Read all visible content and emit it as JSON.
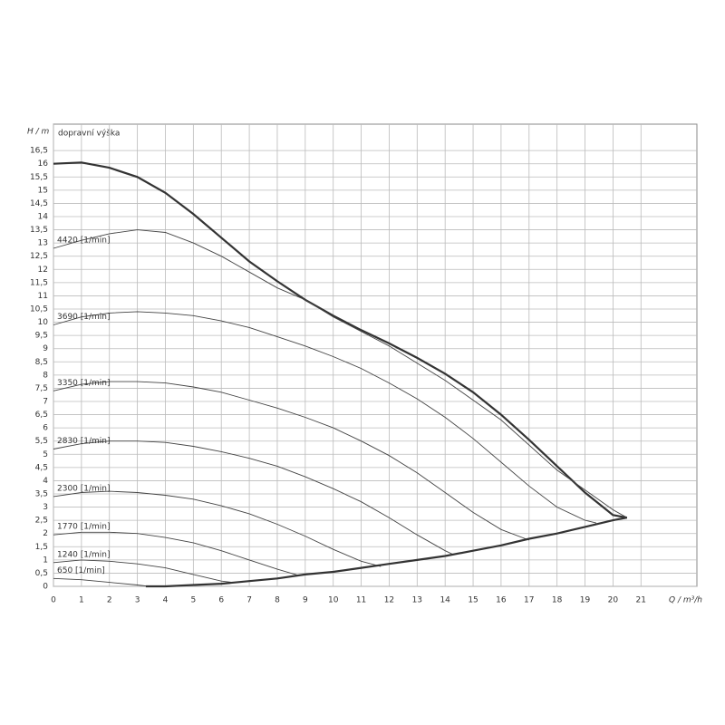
{
  "chart_data": {
    "type": "line",
    "y_label": "H / m",
    "y_title": "dopravní výška",
    "x_label": "Q / m³/h",
    "xlim": [
      0,
      23
    ],
    "ylim": [
      0,
      17.5
    ],
    "xticks": [
      0,
      1,
      2,
      3,
      4,
      5,
      6,
      7,
      8,
      9,
      10,
      11,
      12,
      13,
      14,
      15,
      16,
      17,
      18,
      19,
      20,
      21
    ],
    "yticks": [
      0,
      {
        "value": 0.5,
        "label": "0,5"
      },
      1,
      {
        "value": 1.5,
        "label": "1,5"
      },
      2,
      {
        "value": 2.5,
        "label": "2,5"
      },
      3,
      {
        "value": 3.5,
        "label": "3,5"
      },
      4,
      {
        "value": 4.5,
        "label": "4,5"
      },
      5,
      {
        "value": 5.5,
        "label": "5,5"
      },
      6,
      {
        "value": 6.5,
        "label": "6,5"
      },
      7,
      {
        "value": 7.5,
        "label": "7,5"
      },
      8,
      {
        "value": 8.5,
        "label": "8,5"
      },
      9,
      {
        "value": 9.5,
        "label": "9,5"
      },
      10,
      {
        "value": 10.5,
        "label": "10,5"
      },
      11,
      {
        "value": 11.5,
        "label": "11,5"
      },
      12,
      {
        "value": 12.5,
        "label": "12,5"
      },
      13,
      {
        "value": 13.5,
        "label": "13,5"
      },
      14,
      {
        "value": 14.5,
        "label": "14,5"
      },
      15,
      {
        "value": 15.5,
        "label": "15,5"
      },
      16,
      {
        "value": 16.5,
        "label": "16,5"
      }
    ],
    "grid": true,
    "series": [
      {
        "color": "#333333",
        "bold": true,
        "x": [
          0,
          1,
          2,
          3,
          4,
          5,
          6,
          7,
          8,
          9,
          10,
          11,
          12,
          13,
          14,
          15,
          16,
          17,
          18,
          19,
          20,
          20.5
        ],
        "values": [
          16.0,
          16.05,
          15.85,
          15.5,
          14.9,
          14.1,
          13.2,
          12.3,
          11.55,
          10.85,
          10.25,
          9.7,
          9.2,
          8.65,
          8.05,
          7.35,
          6.5,
          5.55,
          4.55,
          3.55,
          2.7,
          2.6
        ]
      },
      {
        "name": "4420 [1/min]",
        "color": "#444444",
        "x": [
          0,
          1,
          2,
          3,
          4,
          5,
          6,
          7,
          8,
          9,
          10,
          12,
          14,
          16,
          18,
          20,
          20.5
        ],
        "values": [
          12.8,
          13.1,
          13.35,
          13.5,
          13.4,
          13.0,
          12.5,
          11.9,
          11.3,
          10.85,
          10.2,
          9.1,
          7.8,
          6.3,
          4.4,
          2.9,
          2.6
        ]
      },
      {
        "name": "3690 [1/min]",
        "color": "#444444",
        "x": [
          0,
          1,
          2,
          3,
          4,
          5,
          6,
          7,
          8,
          9,
          10,
          11,
          12,
          13,
          14,
          15,
          16,
          17,
          18,
          19,
          19.4
        ],
        "values": [
          9.9,
          10.2,
          10.35,
          10.4,
          10.35,
          10.25,
          10.05,
          9.8,
          9.45,
          9.1,
          8.7,
          8.25,
          7.7,
          7.1,
          6.4,
          5.6,
          4.7,
          3.8,
          3.0,
          2.5,
          2.4
        ]
      },
      {
        "name": "3350 [1/min]",
        "color": "#444444",
        "x": [
          0,
          1,
          2,
          3,
          4,
          5,
          6,
          7,
          8,
          9,
          10,
          11,
          12,
          13,
          14,
          15,
          16,
          17
        ],
        "values": [
          7.4,
          7.65,
          7.75,
          7.75,
          7.7,
          7.55,
          7.35,
          7.05,
          6.75,
          6.4,
          6.0,
          5.5,
          4.95,
          4.3,
          3.55,
          2.8,
          2.15,
          1.75
        ]
      },
      {
        "name": "2830 [1/min]",
        "color": "#444444",
        "x": [
          0,
          1,
          2,
          3,
          4,
          5,
          6,
          7,
          8,
          9,
          10,
          11,
          12,
          13,
          14,
          14.3
        ],
        "values": [
          5.2,
          5.4,
          5.5,
          5.5,
          5.45,
          5.3,
          5.1,
          4.85,
          4.55,
          4.15,
          3.7,
          3.2,
          2.6,
          1.95,
          1.35,
          1.2
        ]
      },
      {
        "name": "2300 [1/min]",
        "color": "#444444",
        "x": [
          0,
          1,
          2,
          3,
          4,
          5,
          6,
          7,
          8,
          9,
          10,
          11,
          11.7
        ],
        "values": [
          3.4,
          3.55,
          3.6,
          3.55,
          3.45,
          3.3,
          3.05,
          2.75,
          2.35,
          1.9,
          1.4,
          0.95,
          0.75
        ]
      },
      {
        "name": "1770 [1/min]",
        "color": "#444444",
        "x": [
          0,
          1,
          2,
          3,
          4,
          5,
          6,
          7,
          8,
          8.8
        ],
        "values": [
          1.95,
          2.05,
          2.05,
          2.0,
          1.85,
          1.65,
          1.35,
          1.0,
          0.65,
          0.4
        ]
      },
      {
        "name": "1240 [1/min]",
        "color": "#444444",
        "x": [
          0,
          1,
          2,
          3,
          4,
          5,
          6,
          6.4
        ],
        "values": [
          0.9,
          1.0,
          0.95,
          0.85,
          0.7,
          0.45,
          0.2,
          0.15
        ]
      },
      {
        "name": "650 [1/min]",
        "color": "#444444",
        "x": [
          0,
          1,
          2,
          3,
          3.4
        ],
        "values": [
          0.3,
          0.25,
          0.15,
          0.05,
          0
        ]
      },
      {
        "color": "#333333",
        "bold": true,
        "x": [
          3.3,
          4,
          5,
          6,
          7,
          8,
          9,
          10,
          11,
          12,
          13,
          14,
          15,
          16,
          17,
          18,
          19,
          20,
          20.5
        ],
        "values": [
          0.0,
          0.0,
          0.05,
          0.1,
          0.2,
          0.3,
          0.45,
          0.55,
          0.7,
          0.85,
          1.0,
          1.15,
          1.35,
          1.55,
          1.8,
          2.0,
          2.25,
          2.5,
          2.6
        ]
      }
    ]
  }
}
